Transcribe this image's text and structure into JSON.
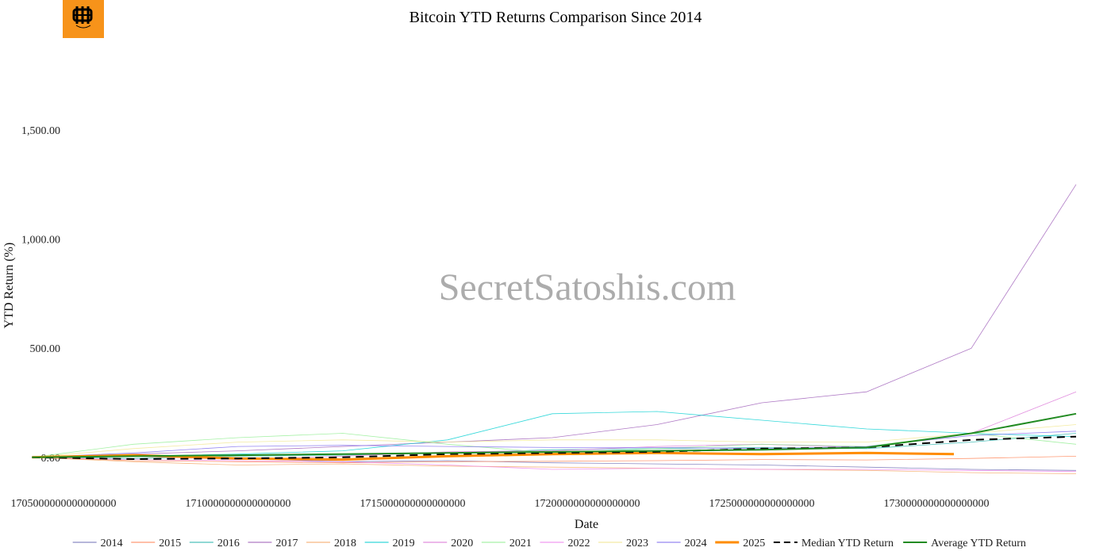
{
  "chart_data": {
    "type": "line",
    "title": "Bitcoin YTD Returns Comparison Since 2014",
    "xlabel": "Date",
    "ylabel": "YTD Return (%)",
    "watermark": "SecretSatoshis.com",
    "logo": "bitcoin-logo-icon",
    "xlim": [
      1705000000000000000,
      1735000000000000000
    ],
    "ylim": [
      -175,
      1950
    ],
    "x_ticks": [
      1705000000000000000,
      1710000000000000000,
      1715000000000000000,
      1720000000000000000,
      1725000000000000000,
      1730000000000000000
    ],
    "x_tick_labels": [
      "1705000000000000000",
      "1710000000000000000",
      "1715000000000000000",
      "1720000000000000000",
      "1725000000000000000",
      "1730000000000000000"
    ],
    "y_ticks": [
      0,
      500,
      1000,
      1500
    ],
    "y_tick_labels": [
      "0.00",
      "500.00",
      "1,000.00",
      "1,500.00"
    ],
    "legend_position": "bottom",
    "series": [
      {
        "name": "2014",
        "color": "#6c6cb4",
        "width": 0.8,
        "dash": "",
        "x": [
          1704100000000000000,
          1707000000000000000,
          1710000000000000000,
          1713000000000000000,
          1716000000000000000,
          1719000000000000000,
          1722000000000000000,
          1725000000000000000,
          1728000000000000000,
          1731000000000000000,
          1734000000000000000
        ],
        "y": [
          0,
          8,
          -5,
          -20,
          -15,
          -25,
          -30,
          -35,
          -45,
          -55,
          -60
        ]
      },
      {
        "name": "2015",
        "color": "#ff7f50",
        "width": 0.8,
        "dash": "",
        "x": [
          1704100000000000000,
          1707000000000000000,
          1710000000000000000,
          1713000000000000000,
          1716000000000000000,
          1719000000000000000,
          1722000000000000000,
          1725000000000000000,
          1728000000000000000,
          1731000000000000000,
          1734000000000000000
        ],
        "y": [
          0,
          -15,
          -20,
          -25,
          -20,
          -18,
          -15,
          -10,
          -12,
          -5,
          5
        ]
      },
      {
        "name": "2016",
        "color": "#20b2aa",
        "width": 0.8,
        "dash": "",
        "x": [
          1704100000000000000,
          1707000000000000000,
          1710000000000000000,
          1713000000000000000,
          1716000000000000000,
          1719000000000000000,
          1722000000000000000,
          1725000000000000000,
          1728000000000000000,
          1731000000000000000,
          1734000000000000000
        ],
        "y": [
          0,
          -5,
          5,
          10,
          20,
          35,
          40,
          45,
          40,
          70,
          110
        ]
      },
      {
        "name": "2017",
        "color": "#9b59b6",
        "width": 0.8,
        "dash": "",
        "x": [
          1704100000000000000,
          1707000000000000000,
          1710000000000000000,
          1713000000000000000,
          1716000000000000000,
          1719000000000000000,
          1722000000000000000,
          1725000000000000000,
          1728000000000000000,
          1731000000000000000,
          1734000000000000000
        ],
        "y": [
          0,
          15,
          30,
          50,
          70,
          90,
          150,
          250,
          300,
          500,
          1250
        ]
      },
      {
        "name": "2018",
        "color": "#f4a460",
        "width": 0.8,
        "dash": "",
        "x": [
          1704100000000000000,
          1707000000000000000,
          1710000000000000000,
          1713000000000000000,
          1716000000000000000,
          1719000000000000000,
          1722000000000000000,
          1725000000000000000,
          1728000000000000000,
          1731000000000000000,
          1734000000000000000
        ],
        "y": [
          0,
          -20,
          -35,
          -30,
          -40,
          -45,
          -50,
          -55,
          -60,
          -70,
          -75
        ]
      },
      {
        "name": "2019",
        "color": "#00ced1",
        "width": 0.8,
        "dash": "",
        "x": [
          1704100000000000000,
          1707000000000000000,
          1710000000000000000,
          1713000000000000000,
          1716000000000000000,
          1719000000000000000,
          1722000000000000000,
          1725000000000000000,
          1728000000000000000,
          1731000000000000000,
          1734000000000000000
        ],
        "y": [
          0,
          5,
          15,
          30,
          80,
          200,
          210,
          170,
          130,
          110,
          95
        ]
      },
      {
        "name": "2020",
        "color": "#da70d6",
        "width": 0.8,
        "dash": "",
        "x": [
          1704100000000000000,
          1707000000000000000,
          1710000000000000000,
          1713000000000000000,
          1716000000000000000,
          1719000000000000000,
          1722000000000000000,
          1725000000000000000,
          1728000000000000000,
          1731000000000000000,
          1734000000000000000
        ],
        "y": [
          0,
          5,
          -10,
          5,
          25,
          30,
          50,
          60,
          45,
          110,
          300
        ]
      },
      {
        "name": "2021",
        "color": "#90ee90",
        "width": 0.8,
        "dash": "",
        "x": [
          1704100000000000000,
          1707000000000000000,
          1710000000000000000,
          1713000000000000000,
          1716000000000000000,
          1719000000000000000,
          1722000000000000000,
          1725000000000000000,
          1728000000000000000,
          1731000000000000000,
          1734000000000000000
        ],
        "y": [
          0,
          60,
          90,
          110,
          60,
          20,
          40,
          60,
          50,
          110,
          60
        ]
      },
      {
        "name": "2022",
        "color": "#ee82ee",
        "width": 0.8,
        "dash": "",
        "x": [
          1704100000000000000,
          1707000000000000000,
          1710000000000000000,
          1713000000000000000,
          1716000000000000000,
          1719000000000000000,
          1722000000000000000,
          1725000000000000000,
          1728000000000000000,
          1731000000000000000,
          1734000000000000000
        ],
        "y": [
          0,
          -10,
          -15,
          -20,
          -35,
          -55,
          -50,
          -55,
          -55,
          -60,
          -65
        ]
      },
      {
        "name": "2023",
        "color": "#f0e68c",
        "width": 0.8,
        "dash": "",
        "x": [
          1704100000000000000,
          1707000000000000000,
          1710000000000000000,
          1713000000000000000,
          1716000000000000000,
          1719000000000000000,
          1722000000000000000,
          1725000000000000000,
          1728000000000000000,
          1731000000000000000,
          1734000000000000000
        ],
        "y": [
          0,
          40,
          70,
          80,
          70,
          80,
          80,
          70,
          70,
          110,
          150
        ]
      },
      {
        "name": "2024",
        "color": "#7b68ee",
        "width": 0.8,
        "dash": "",
        "x": [
          1704100000000000000,
          1707000000000000000,
          1710000000000000000,
          1713000000000000000,
          1716000000000000000,
          1719000000000000000,
          1722000000000000000,
          1725000000000000000,
          1728000000000000000,
          1731000000000000000,
          1734000000000000000
        ],
        "y": [
          0,
          20,
          50,
          55,
          50,
          45,
          45,
          40,
          50,
          100,
          120
        ]
      },
      {
        "name": "2025",
        "color": "#ff8c00",
        "width": 3,
        "dash": "",
        "x": [
          1704100000000000000,
          1707000000000000000,
          1710000000000000000,
          1713000000000000000,
          1716000000000000000,
          1719000000000000000,
          1722000000000000000,
          1725000000000000000,
          1728000000000000000,
          1730500000000000000
        ],
        "y": [
          0,
          10,
          -5,
          -10,
          5,
          15,
          20,
          15,
          20,
          15
        ]
      },
      {
        "name": "Median YTD Return",
        "color": "#000000",
        "width": 2,
        "dash": "10,7",
        "x": [
          1704100000000000000,
          1707000000000000000,
          1710000000000000000,
          1713000000000000000,
          1716000000000000000,
          1719000000000000000,
          1722000000000000000,
          1725000000000000000,
          1728000000000000000,
          1731000000000000000,
          1734000000000000000
        ],
        "y": [
          0,
          -8,
          -5,
          0,
          15,
          20,
          25,
          40,
          45,
          80,
          95
        ]
      },
      {
        "name": "Average YTD Return",
        "color": "#228b22",
        "width": 2,
        "dash": "",
        "x": [
          1704100000000000000,
          1707000000000000000,
          1710000000000000000,
          1713000000000000000,
          1716000000000000000,
          1719000000000000000,
          1722000000000000000,
          1725000000000000000,
          1728000000000000000,
          1731000000000000000,
          1732000000000000000,
          1734000000000000000
        ],
        "y": [
          0,
          5,
          10,
          15,
          20,
          25,
          30,
          35,
          45,
          110,
          140,
          200
        ]
      }
    ]
  }
}
